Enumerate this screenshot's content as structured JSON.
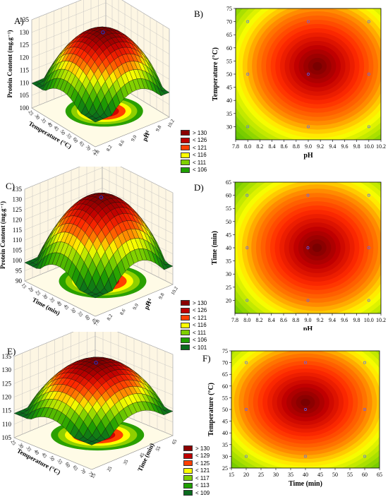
{
  "panels": [
    {
      "id": "A",
      "label": "A)",
      "type": "surface3d",
      "zlabel": "Protein Content (mg.g⁻¹)",
      "xlabel": "Temperature (°C)",
      "ylabel": "pH",
      "zticks": [
        "100",
        "105",
        "110",
        "115",
        "120",
        "125",
        "130",
        "135"
      ],
      "xticks": [
        "25",
        "30",
        "35",
        "40",
        "45",
        "50",
        "55",
        "60",
        "65",
        "70",
        "75"
      ],
      "yticks": [
        "7.8",
        "8.2",
        "8.6",
        "9.0",
        "9.4",
        "9.8",
        "10.2"
      ],
      "legend": [
        "> 130",
        "< 126",
        "< 121",
        "< 116",
        "< 111",
        "< 106"
      ]
    },
    {
      "id": "B",
      "label": "B)",
      "type": "contour",
      "xlabel": "pH",
      "ylabel": "Temperature (°C)",
      "xticks": [
        "7.8",
        "8.0",
        "8.2",
        "8.4",
        "8.6",
        "8.8",
        "9.0",
        "9.2",
        "9.4",
        "9.6",
        "9.8",
        "10.0",
        "10.2"
      ],
      "yticks": [
        "30",
        "35",
        "40",
        "45",
        "50",
        "55",
        "60",
        "65",
        "70",
        "75"
      ]
    },
    {
      "id": "C",
      "label": "C)",
      "type": "surface3d",
      "zlabel": "Protein Content (mg.g⁻¹)",
      "xlabel": "Time (min)",
      "ylabel": "pH",
      "zticks": [
        "90",
        "95",
        "100",
        "105",
        "110",
        "115",
        "120",
        "125",
        "130",
        "135"
      ],
      "xticks": [
        "15",
        "20",
        "25",
        "30",
        "35",
        "40",
        "45",
        "50",
        "55",
        "60",
        "65"
      ],
      "yticks": [
        "7.8",
        "8.2",
        "8.6",
        "9.0",
        "9.4",
        "9.8",
        "10.2"
      ],
      "legend": [
        "> 130",
        "< 126",
        "< 121",
        "< 116",
        "< 111",
        "< 106",
        "< 101"
      ]
    },
    {
      "id": "D",
      "label": "D)",
      "type": "contour",
      "xlabel": "pH",
      "ylabel": "Time (min)",
      "xticks": [
        "7.8",
        "8.0",
        "8.2",
        "8.4",
        "8.6",
        "8.8",
        "9.0",
        "9.2",
        "9.4",
        "9.6",
        "9.8",
        "10.0",
        "10.2"
      ],
      "yticks": [
        "20",
        "25",
        "30",
        "35",
        "40",
        "45",
        "50",
        "55",
        "60",
        "65"
      ]
    },
    {
      "id": "E",
      "label": "E)",
      "type": "surface3d",
      "zlabel": "Protein Content (mg.g⁻¹)",
      "xlabel": "Temperature (°C)",
      "ylabel": "Time (min)",
      "zticks": [
        "105",
        "110",
        "115",
        "120",
        "125",
        "130",
        "135"
      ],
      "xticks": [
        "25",
        "30",
        "35",
        "40",
        "45",
        "50",
        "55",
        "60",
        "65",
        "70",
        "75"
      ],
      "yticks": [
        "15",
        "25",
        "35",
        "45",
        "55",
        "65"
      ],
      "legend": [
        "> 130",
        "< 129",
        "< 125",
        "< 121",
        "< 117",
        "< 113",
        "< 109"
      ]
    },
    {
      "id": "F",
      "label": "F)",
      "type": "contour",
      "xlabel": "Time (min)",
      "ylabel": "Temperature (°C)",
      "xticks": [
        "15",
        "20",
        "25",
        "30",
        "35",
        "40",
        "45",
        "50",
        "55",
        "60",
        "65"
      ],
      "yticks": [
        "25",
        "30",
        "35",
        "40",
        "45",
        "50",
        "55",
        "60",
        "65",
        "70",
        "75"
      ]
    }
  ],
  "chart_data": [
    {
      "type": "surface",
      "panel": "A",
      "zlabel": "Protein Content (mg.g⁻¹)",
      "xlabel": "Temperature (°C)",
      "ylabel": "pH",
      "xlim": [
        25,
        75
      ],
      "ylim": [
        7.8,
        10.2
      ],
      "zlim": [
        100,
        135
      ],
      "peak": {
        "temperature": 52,
        "pH": 9.1,
        "protein": 130
      },
      "legend": [
        "> 130",
        "< 126",
        "< 121",
        "< 116",
        "< 111",
        "< 106"
      ]
    },
    {
      "type": "heatmap",
      "panel": "B",
      "subtype": "contour",
      "xlabel": "pH",
      "ylabel": "Temperature (°C)",
      "xlim": [
        7.8,
        10.2
      ],
      "ylim": [
        25,
        75
      ],
      "center": {
        "x": 9.15,
        "y": 53
      },
      "design_points": [
        {
          "x": 8.0,
          "y": 70
        },
        {
          "x": 9.0,
          "y": 70
        },
        {
          "x": 10.0,
          "y": 70
        },
        {
          "x": 8.0,
          "y": 50
        },
        {
          "x": 9.0,
          "y": 50
        },
        {
          "x": 10.0,
          "y": 50
        },
        {
          "x": 8.0,
          "y": 30
        },
        {
          "x": 9.0,
          "y": 30
        },
        {
          "x": 10.0,
          "y": 30
        }
      ]
    },
    {
      "type": "surface",
      "panel": "C",
      "zlabel": "Protein Content (mg.g⁻¹)",
      "xlabel": "Time (min)",
      "ylabel": "pH",
      "xlim": [
        15,
        65
      ],
      "ylim": [
        7.8,
        10.2
      ],
      "zlim": [
        90,
        135
      ],
      "peak": {
        "time": 40,
        "pH": 9.1,
        "protein": 130
      },
      "legend": [
        "> 130",
        "< 126",
        "< 121",
        "< 116",
        "< 111",
        "< 106",
        "< 101"
      ]
    },
    {
      "type": "heatmap",
      "panel": "D",
      "subtype": "contour",
      "xlabel": "pH",
      "ylabel": "Time (min)",
      "xlim": [
        7.8,
        10.2
      ],
      "ylim": [
        15,
        65
      ],
      "center": {
        "x": 9.15,
        "y": 40
      },
      "design_points": [
        {
          "x": 8.0,
          "y": 60
        },
        {
          "x": 9.0,
          "y": 60
        },
        {
          "x": 10.0,
          "y": 60
        },
        {
          "x": 8.0,
          "y": 40
        },
        {
          "x": 9.0,
          "y": 40
        },
        {
          "x": 10.0,
          "y": 40
        },
        {
          "x": 8.0,
          "y": 20
        },
        {
          "x": 9.0,
          "y": 20
        },
        {
          "x": 10.0,
          "y": 20
        }
      ]
    },
    {
      "type": "surface",
      "panel": "E",
      "zlabel": "Protein Content (mg.g⁻¹)",
      "xlabel": "Temperature (°C)",
      "ylabel": "Time (min)",
      "xlim": [
        25,
        75
      ],
      "ylim": [
        15,
        65
      ],
      "zlim": [
        105,
        135
      ],
      "peak": {
        "temperature": 52,
        "time": 40,
        "protein": 130
      },
      "legend": [
        "> 130",
        "< 129",
        "< 125",
        "< 121",
        "< 117",
        "< 113",
        "< 109"
      ]
    },
    {
      "type": "heatmap",
      "panel": "F",
      "subtype": "contour",
      "xlabel": "Time (min)",
      "ylabel": "Temperature (°C)",
      "xlim": [
        15,
        65
      ],
      "ylim": [
        25,
        75
      ],
      "center": {
        "x": 40,
        "y": 53
      },
      "design_points": [
        {
          "x": 20,
          "y": 70
        },
        {
          "x": 40,
          "y": 70
        },
        {
          "x": 60,
          "y": 70
        },
        {
          "x": 20,
          "y": 50
        },
        {
          "x": 40,
          "y": 50
        },
        {
          "x": 60,
          "y": 50
        },
        {
          "x": 20,
          "y": 30
        },
        {
          "x": 40,
          "y": 30
        },
        {
          "x": 60,
          "y": 30
        }
      ]
    }
  ],
  "colors": {
    "c1": "#8b0000",
    "c2": "#c00000",
    "c3": "#ff2a00",
    "c4": "#ffff00",
    "c5": "#7fd000",
    "c6": "#20a000",
    "c7": "#0a6b1e"
  }
}
